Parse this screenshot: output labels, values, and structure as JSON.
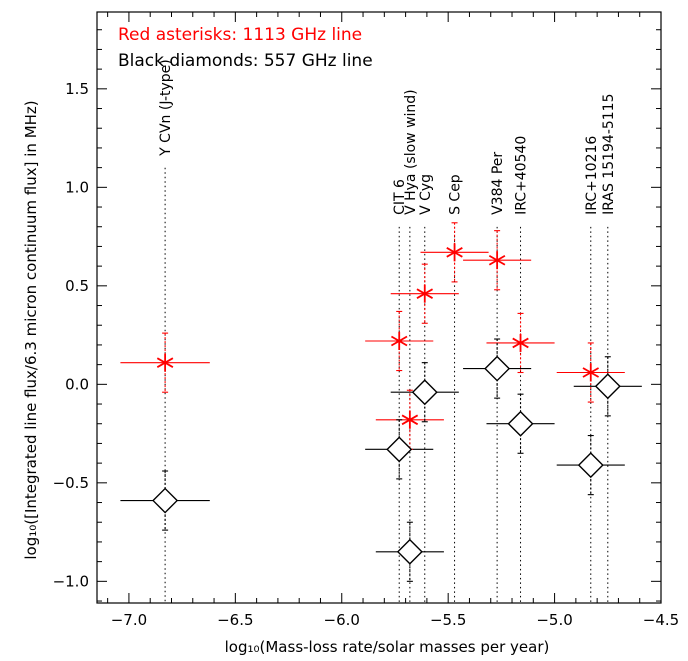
{
  "chart_data": {
    "type": "scatter",
    "xlabel": "log₁₀(Mass-loss rate/solar masses per year)",
    "ylabel": "log₁₀([Integrated line flux/6.3 micron continuum flux] in MHz)",
    "xlim": [
      -7.15,
      -4.5
    ],
    "ylim": [
      -1.11,
      1.89
    ],
    "xticks": [
      -7.0,
      -6.5,
      -6.0,
      -5.5,
      -5.0,
      -4.5
    ],
    "xtick_labels": [
      "−7.0",
      "−6.5",
      "−6.0",
      "−5.5",
      "−5.0",
      "−4.5"
    ],
    "yticks": [
      -1.0,
      -0.5,
      0.0,
      0.5,
      1.0,
      1.5
    ],
    "ytick_labels": [
      "−1.0",
      "−0.5",
      "0.0",
      "0.5",
      "1.0",
      "1.5"
    ],
    "grid": false,
    "legend": {
      "placement": "top-left",
      "entries": [
        {
          "text": "Red asterisks: 1113 GHz line",
          "color": "#ff0000"
        },
        {
          "text": "Black diamonds: 557 GHz line",
          "color": "#000000"
        }
      ]
    },
    "stars": [
      {
        "name": "Y CVn (J-type)",
        "x": -6.83,
        "label_y": 1.16
      },
      {
        "name": "CIT 6",
        "x": -5.73,
        "label_y": 0.86
      },
      {
        "name": "V Hya (slow wind)",
        "x": -5.68,
        "label_y": 0.86
      },
      {
        "name": "V Cyg",
        "x": -5.61,
        "label_y": 0.86
      },
      {
        "name": "S Cep",
        "x": -5.47,
        "label_y": 0.86
      },
      {
        "name": "V384 Per",
        "x": -5.27,
        "label_y": 0.86
      },
      {
        "name": "IRC+40540",
        "x": -5.16,
        "label_y": 0.86
      },
      {
        "name": "IRC+10216",
        "x": -4.83,
        "label_y": 0.86
      },
      {
        "name": "IRAS 15194-5115",
        "x": -4.75,
        "label_y": 0.86
      }
    ],
    "series": [
      {
        "marker": "asterisk",
        "color": "#ff0000",
        "points": [
          {
            "x": -6.83,
            "y": 0.11,
            "xerr": 0.21,
            "yerr": 0.15
          },
          {
            "x": -5.73,
            "y": 0.22,
            "xerr": 0.16,
            "yerr": 0.15
          },
          {
            "x": -5.68,
            "y": -0.18,
            "xerr": 0.16,
            "yerr": 0.15
          },
          {
            "x": -5.61,
            "y": 0.46,
            "xerr": 0.16,
            "yerr": 0.15
          },
          {
            "x": -5.47,
            "y": 0.67,
            "xerr": 0.16,
            "yerr": 0.15
          },
          {
            "x": -5.27,
            "y": 0.63,
            "xerr": 0.16,
            "yerr": 0.15
          },
          {
            "x": -5.16,
            "y": 0.21,
            "xerr": 0.16,
            "yerr": 0.15
          },
          {
            "x": -4.83,
            "y": 0.06,
            "xerr": 0.16,
            "yerr": 0.15
          }
        ]
      },
      {
        "marker": "diamond",
        "color": "#000000",
        "points": [
          {
            "x": -6.83,
            "y": -0.59,
            "xerr": 0.21,
            "yerr": 0.15
          },
          {
            "x": -5.73,
            "y": -0.33,
            "xerr": 0.16,
            "yerr": 0.15
          },
          {
            "x": -5.68,
            "y": -0.85,
            "xerr": 0.16,
            "yerr": 0.15
          },
          {
            "x": -5.61,
            "y": -0.04,
            "xerr": 0.16,
            "yerr": 0.15
          },
          {
            "x": -5.27,
            "y": 0.08,
            "xerr": 0.16,
            "yerr": 0.15
          },
          {
            "x": -5.16,
            "y": -0.2,
            "xerr": 0.16,
            "yerr": 0.15
          },
          {
            "x": -4.83,
            "y": -0.41,
            "xerr": 0.16,
            "yerr": 0.15
          },
          {
            "x": -4.75,
            "y": -0.01,
            "xerr": 0.16,
            "yerr": 0.15
          }
        ]
      }
    ]
  }
}
